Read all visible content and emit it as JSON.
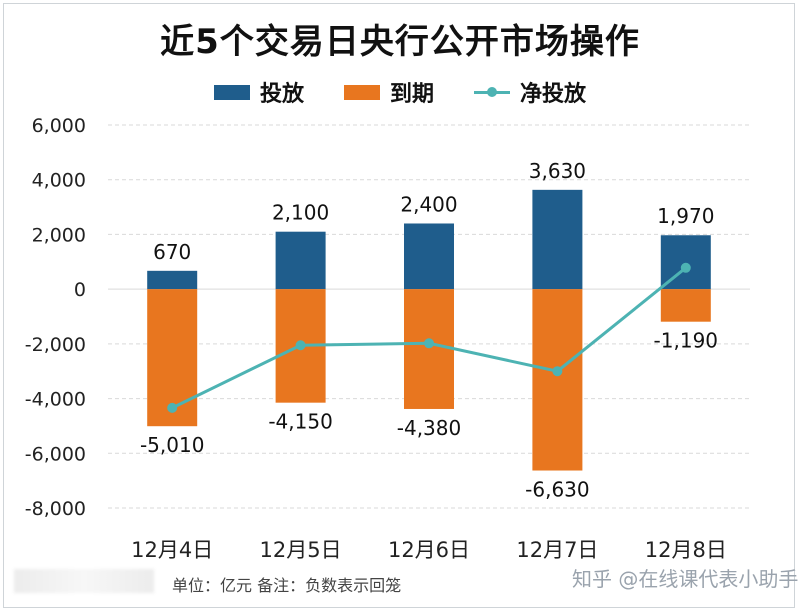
{
  "header": {
    "title": "近5个交易日央行公开市场操作"
  },
  "footer": {
    "note": "单位：亿元     备注：负数表示回笼",
    "watermark": "知乎 @在线课代表小助手"
  },
  "colors": {
    "issue": "#1f5d8c",
    "mature": "#e8761f",
    "net": "#4db3b3",
    "grid": "#d9d9d9"
  },
  "chart_data": {
    "type": "bar",
    "categories": [
      "12月4日",
      "12月5日",
      "12月6日",
      "12月7日",
      "12月8日"
    ],
    "series": [
      {
        "name": "投放",
        "type": "bar",
        "values": [
          670,
          2100,
          2400,
          3630,
          1970
        ],
        "labels": [
          "670",
          "2,100",
          "2,400",
          "3,630",
          "1,970"
        ]
      },
      {
        "name": "到期",
        "type": "bar",
        "values": [
          -5010,
          -4150,
          -4380,
          -6630,
          -1190
        ],
        "labels": [
          "-5,010",
          "-4,150",
          "-4,380",
          "-6,630",
          "-1,190"
        ]
      },
      {
        "name": "净投放",
        "type": "line",
        "values": [
          -4340,
          -2050,
          -1980,
          -3000,
          780
        ]
      }
    ],
    "ylim": [
      -8000,
      6000
    ],
    "yticks": [
      6000,
      4000,
      2000,
      0,
      -2000,
      -4000,
      -6000,
      -8000
    ],
    "ytick_labels": [
      "6,000",
      "4,000",
      "2,000",
      "0",
      "-2,000",
      "-4,000",
      "-6,000",
      "-8,000"
    ],
    "xlabel": "",
    "ylabel": "",
    "grid": true,
    "legend_position": "top-center"
  }
}
